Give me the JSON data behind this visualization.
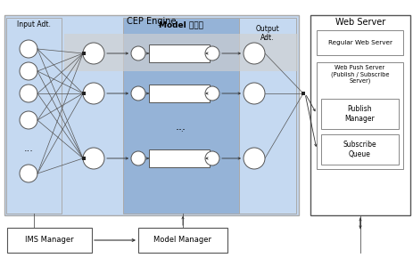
{
  "title_cep": "CEP Engine",
  "title_web": "Web Server",
  "title_model_runner": "Model 실행기",
  "label_input": "Input Adt.",
  "label_output": "Output\nAdt.",
  "label_ims": "IMS Manager",
  "label_model_mgr": "Model Manager",
  "label_regular": "Regular Web Server",
  "label_web_push": "Web Push Server\n(Publish / Subscribe\nServer)",
  "label_publish": "Publish\nManager",
  "label_subscribe": "Subscribe\nQueue",
  "bg_color": "#ffffff",
  "cep_bg": "#c5d9f1",
  "model_runner_bg": "#95b3d7",
  "highlight_bg": "#d0d0d0"
}
